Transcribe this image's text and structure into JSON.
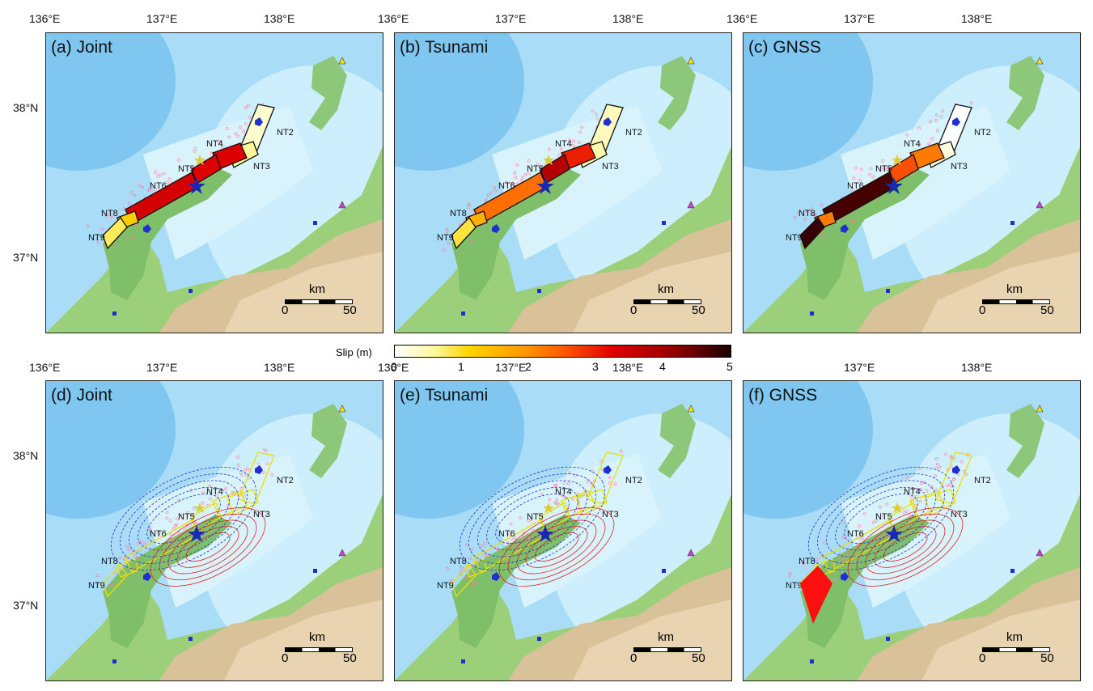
{
  "colorbar": {
    "label": "Slip (m)",
    "ticks": [
      "0",
      "1",
      "2",
      "3",
      "4",
      "5"
    ],
    "range": [
      0,
      5
    ]
  },
  "lon_ticks": [
    "136°E",
    "137°E",
    "138°E"
  ],
  "lat_ticks": [
    "38°N",
    "37°N"
  ],
  "scale": {
    "unit": "km",
    "min": "0",
    "max": "50"
  },
  "faults": [
    "NT2",
    "NT3",
    "NT4",
    "NT5",
    "NT6",
    "NT8",
    "NT9"
  ],
  "panels": [
    {
      "title": "(a) Joint",
      "type": "slip",
      "slips": {
        "NT2": 0.3,
        "NT3": 0.6,
        "NT4": 3.3,
        "NT5": 3.3,
        "NT6": 3.4,
        "NT8": 1.2,
        "NT9": 0.8
      }
    },
    {
      "title": "(b) Tsunami",
      "type": "slip",
      "slips": {
        "NT2": 0.4,
        "NT3": 0.5,
        "NT4": 3.0,
        "NT5": 3.8,
        "NT6": 2.3,
        "NT8": 1.6,
        "NT9": 0.9
      }
    },
    {
      "title": "(c) GNSS",
      "type": "slip",
      "slips": {
        "NT2": 0.0,
        "NT3": 0.2,
        "NT4": 2.2,
        "NT5": 2.6,
        "NT6": 4.7,
        "NT8": 2.2,
        "NT9": 4.8
      }
    },
    {
      "title": "(d) Joint",
      "type": "contour"
    },
    {
      "title": "(e) Tsunami",
      "type": "contour"
    },
    {
      "title": "(f) GNSS",
      "type": "contour"
    }
  ]
}
